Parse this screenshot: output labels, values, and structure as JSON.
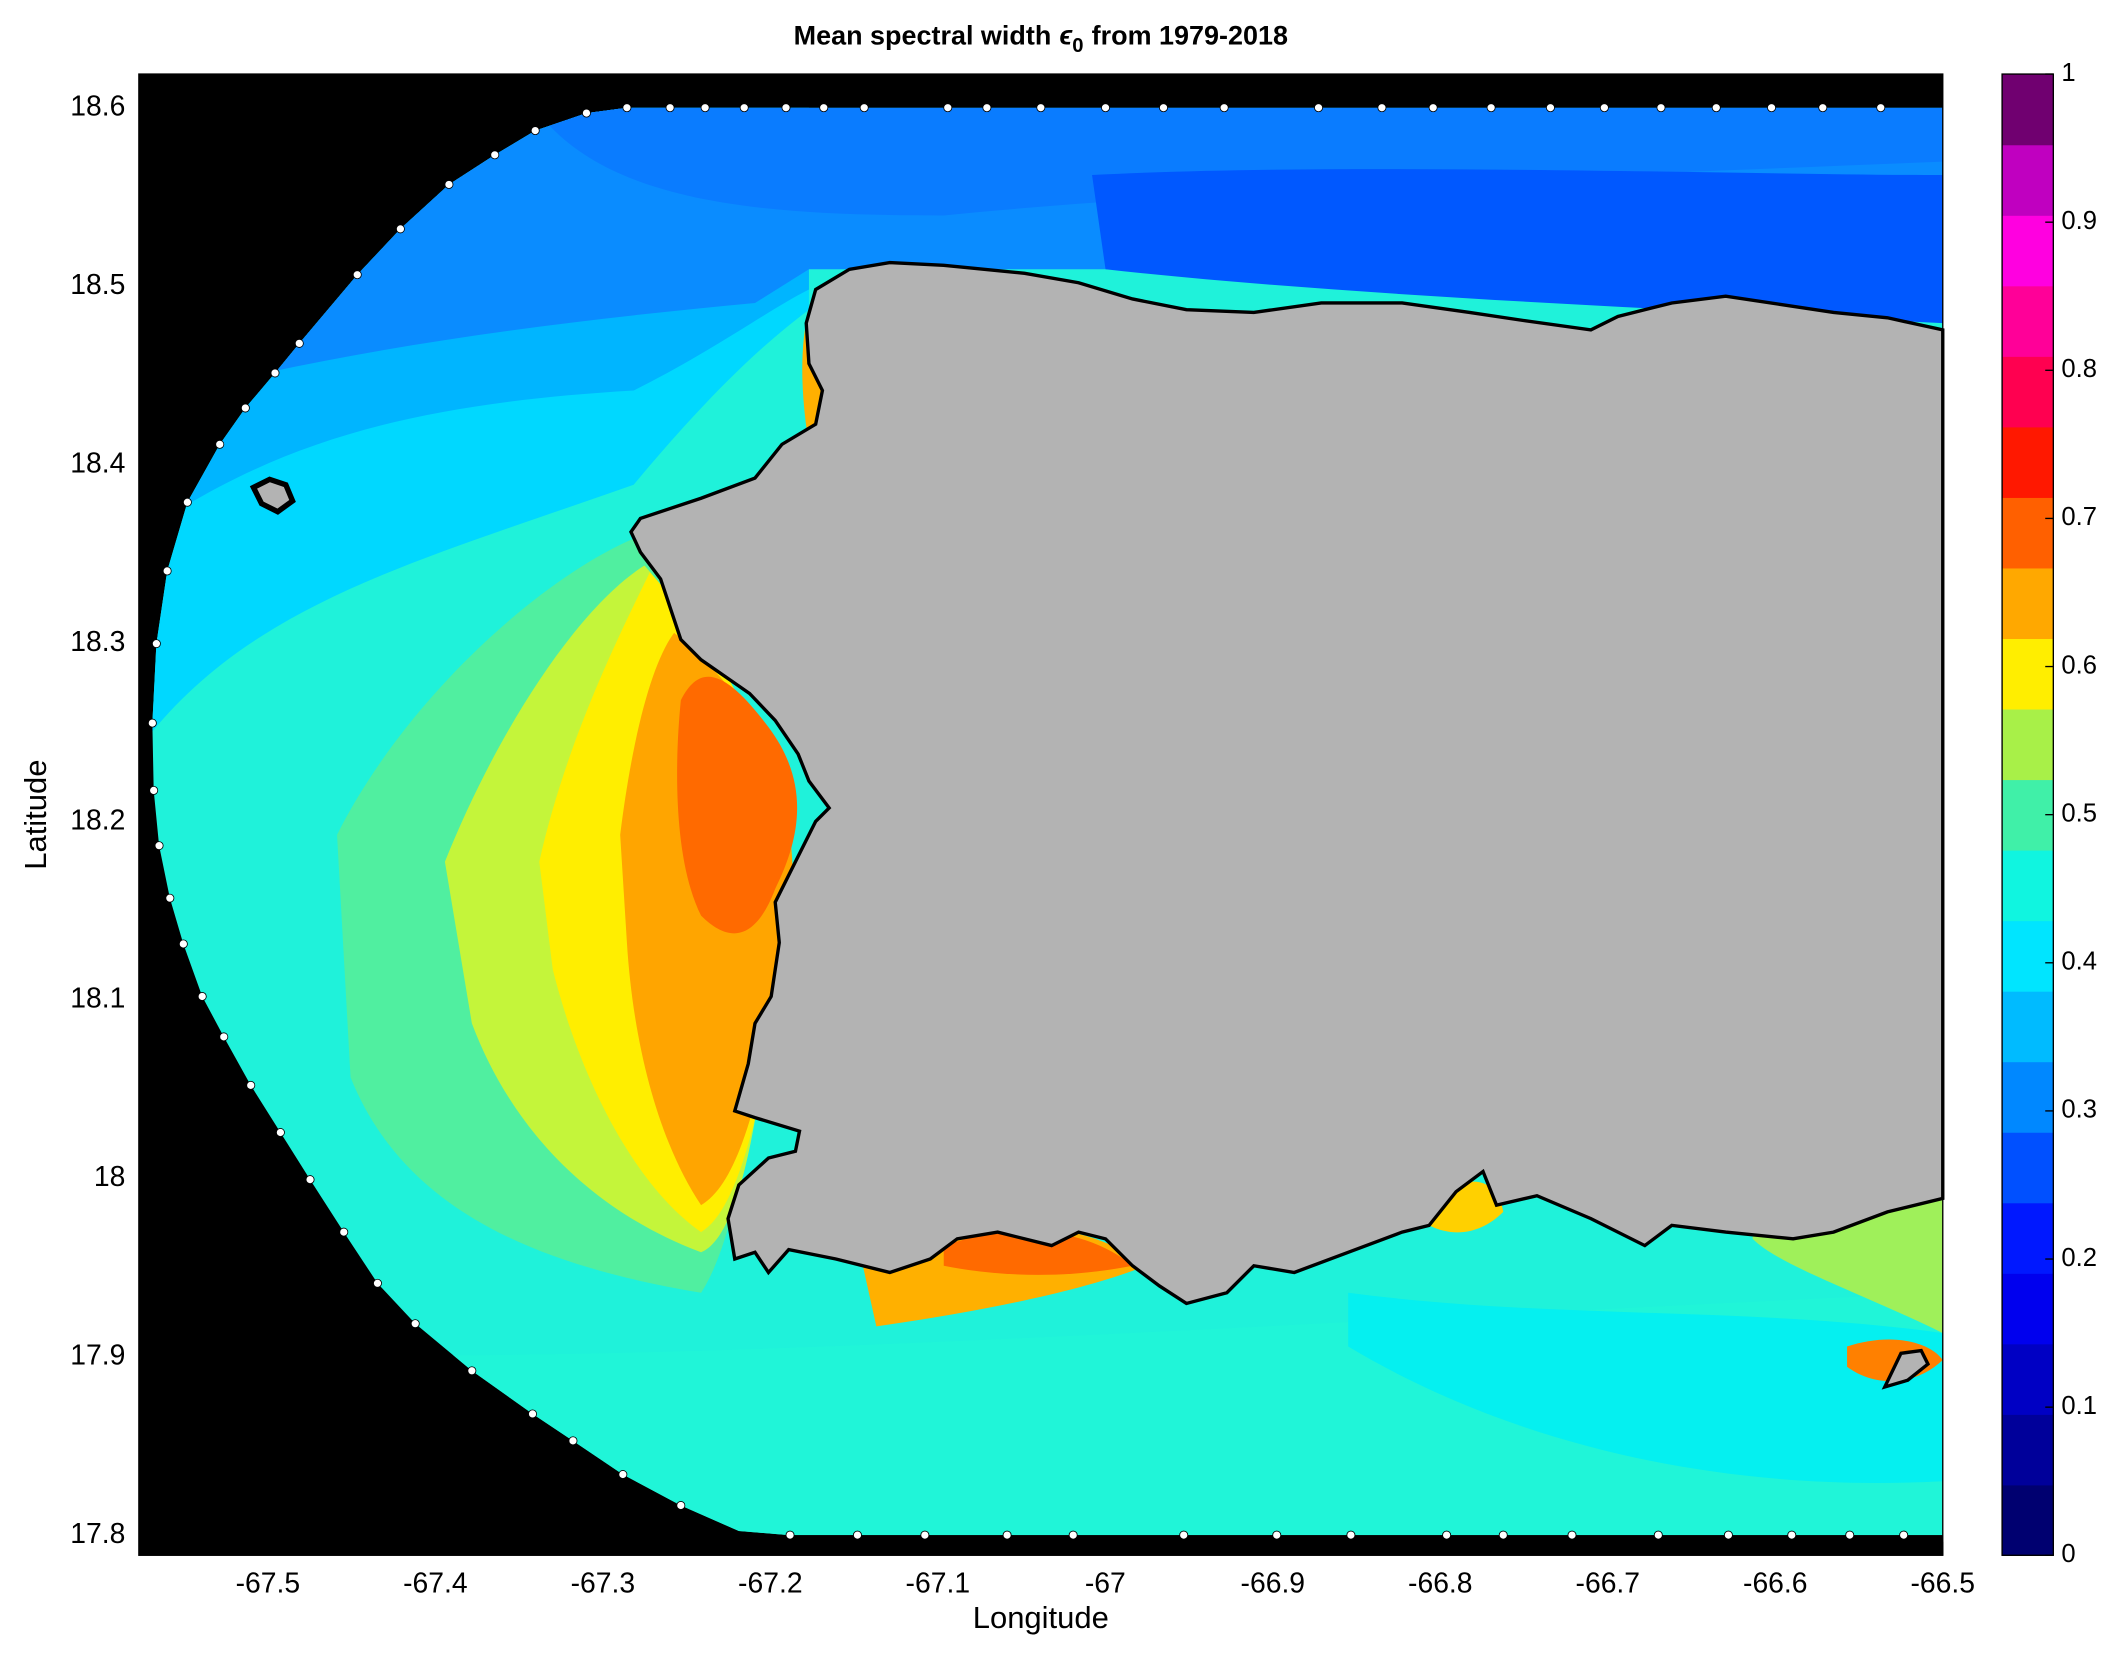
{
  "chart_data": {
    "type": "map",
    "title": {
      "text_before": "Mean spectral width",
      "symbol": "ϵ",
      "subscript": "0",
      "text_after": "from 1979-2018"
    },
    "x_label": "Longitude",
    "y_label": "Latitude",
    "xlim": [
      -67.577,
      -66.5
    ],
    "ylim": [
      17.789,
      18.619
    ],
    "xticks": [
      -67.5,
      -67.4,
      -67.3,
      -67.2,
      -67.1,
      -67,
      -66.9,
      -66.8,
      -66.7,
      -66.6,
      -66.5
    ],
    "yticks": [
      17.8,
      17.9,
      18,
      18.1,
      18.2,
      18.3,
      18.4,
      18.5,
      18.6
    ],
    "colorbar": {
      "clim": [
        0,
        1
      ],
      "ticks": [
        0,
        0.1,
        0.2,
        0.3,
        0.4,
        0.5,
        0.6,
        0.7,
        0.8,
        0.9,
        1
      ],
      "colormap": [
        "#000070",
        "#00009a",
        "#0000c4",
        "#0000ee",
        "#0018ff",
        "#0050ff",
        "#0088ff",
        "#00bbff",
        "#00e5ff",
        "#10f5e0",
        "#40f0a8",
        "#a8f048",
        "#ffee00",
        "#ffa800",
        "#ff6000",
        "#ff1800",
        "#ff0050",
        "#ff0098",
        "#ff00e0",
        "#c000c0",
        "#700070"
      ]
    }
  }
}
